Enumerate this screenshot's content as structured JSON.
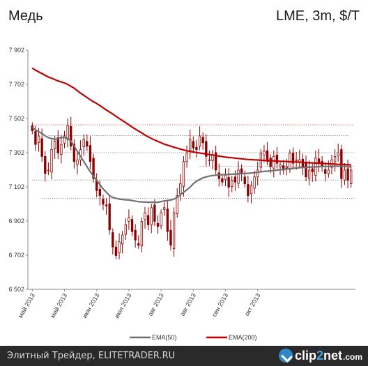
{
  "header": {
    "title_left": "Медь",
    "title_right": "LME, 3m, $/T"
  },
  "footer": {
    "text": "Элитный Трейдер, ELITETRADER.RU",
    "logo": {
      "part1": "clip",
      "part2": "2",
      "part3": "net",
      "suffix": ".com"
    }
  },
  "chart_data": {
    "type": "candlestick",
    "title": "Медь",
    "subtitle": "LME, 3m, $/T",
    "ylim": [
      6502,
      7902
    ],
    "yticks": [
      6502,
      6702,
      6902,
      7102,
      7302,
      7502,
      7702,
      7902
    ],
    "ytick_labels": [
      "6 502",
      "6 702",
      "6 902",
      "7 102",
      "7 302",
      "7 502",
      "7 702",
      "7 902"
    ],
    "x_labels": [
      "май 2013",
      "май 2013",
      "июн 2013",
      "июл 2013",
      "авг 2013",
      "авг 2013",
      "сен 2013",
      "окт 2013"
    ],
    "x_label_positions": [
      0,
      10,
      20,
      30,
      40,
      50,
      60,
      70
    ],
    "num_days": 100,
    "grid": false,
    "legend": {
      "placement": "bottom",
      "entries": [
        "EMA(50)",
        "EMA(200)"
      ]
    },
    "colors": {
      "candle": "#8b0000",
      "ema50": "#707070",
      "ema200": "#c00000",
      "hline": "#555555"
    },
    "close_series": [
      7430,
      7350,
      7400,
      7280,
      7180,
      7200,
      7320,
      7370,
      7300,
      7350,
      7400,
      7460,
      7340,
      7250,
      7260,
      7320,
      7380,
      7340,
      7250,
      7150,
      7080,
      7050,
      7000,
      6990,
      6850,
      6750,
      6700,
      6780,
      6820,
      6880,
      6920,
      6840,
      6790,
      6760,
      6900,
      6950,
      6880,
      6980,
      6900,
      6870,
      6950,
      6980,
      6840,
      6760,
      6950,
      7050,
      7120,
      7250,
      7300,
      7380,
      7330,
      7320,
      7400,
      7360,
      7280,
      7260,
      7290,
      7200,
      7150,
      7130,
      7170,
      7100,
      7140,
      7130,
      7200,
      7180,
      7120,
      7050,
      7110,
      7160,
      7200,
      7300,
      7310,
      7250,
      7220,
      7280,
      7240,
      7230,
      7200,
      7220,
      7300,
      7240,
      7260,
      7260,
      7220,
      7160,
      7200,
      7190,
      7270,
      7240,
      7220,
      7180,
      7200,
      7260,
      7280,
      7300,
      7150,
      7200,
      7140,
      7200
    ],
    "ema50": [
      7450,
      7435,
      7425,
      7415,
      7400,
      7390,
      7385,
      7380,
      7385,
      7390,
      7392,
      7385,
      7370,
      7340,
      7310,
      7280,
      7250,
      7220,
      7190,
      7165,
      7140,
      7115,
      7090,
      7070,
      7050,
      7040,
      7035,
      7030,
      7028,
      7026,
      7025,
      7022,
      7018,
      7015,
      7014,
      7013,
      7012,
      7012,
      7011,
      7012,
      7015,
      7020,
      7022,
      7025,
      7030,
      7040,
      7055,
      7070,
      7085,
      7100,
      7120,
      7135,
      7145,
      7155,
      7160,
      7165,
      7168,
      7170,
      7172,
      7173,
      7174,
      7175,
      7176,
      7177,
      7178,
      7179,
      7180,
      7181,
      7183,
      7185,
      7187,
      7190,
      7192,
      7194,
      7196,
      7198,
      7200,
      7202,
      7204,
      7206,
      7208,
      7210,
      7212,
      7214,
      7215,
      7216,
      7217,
      7218,
      7219,
      7220,
      7221,
      7221,
      7222,
      7222,
      7223,
      7223,
      7222,
      7221,
      7220,
      7218
    ],
    "ema200": [
      7797,
      7785,
      7775,
      7765,
      7755,
      7745,
      7738,
      7730,
      7722,
      7716,
      7710,
      7702,
      7690,
      7680,
      7665,
      7650,
      7638,
      7625,
      7612,
      7600,
      7590,
      7578,
      7565,
      7552,
      7540,
      7528,
      7515,
      7502,
      7490,
      7478,
      7465,
      7452,
      7440,
      7428,
      7418,
      7405,
      7395,
      7385,
      7376,
      7368,
      7360,
      7352,
      7346,
      7340,
      7334,
      7329,
      7323,
      7318,
      7313,
      7309,
      7306,
      7303,
      7300,
      7297,
      7294,
      7291,
      7288,
      7285,
      7282,
      7279,
      7276,
      7274,
      7272,
      7270,
      7268,
      7266,
      7264,
      7262,
      7261,
      7260,
      7259,
      7258,
      7257,
      7256,
      7255,
      7254,
      7253,
      7252,
      7251,
      7250,
      7249,
      7248,
      7247,
      7246,
      7245,
      7244,
      7243,
      7242,
      7241,
      7240,
      7239,
      7238,
      7237,
      7236,
      7235,
      7234,
      7233,
      7232,
      7231,
      7230
    ],
    "horizontal_levels": [
      {
        "y": 7465,
        "from": 0,
        "to": 100,
        "color": "#cc3333"
      },
      {
        "y": 7402,
        "from": 5,
        "to": 98,
        "color": "#777777"
      },
      {
        "y": 7302,
        "from": 8,
        "to": 100,
        "color": "#777777"
      },
      {
        "y": 7222,
        "from": 52,
        "to": 100,
        "color": "#777777"
      },
      {
        "y": 7142,
        "from": 0,
        "to": 98,
        "color": "#777777"
      },
      {
        "y": 7034,
        "from": 3,
        "to": 100,
        "color": "#777777"
      }
    ]
  }
}
